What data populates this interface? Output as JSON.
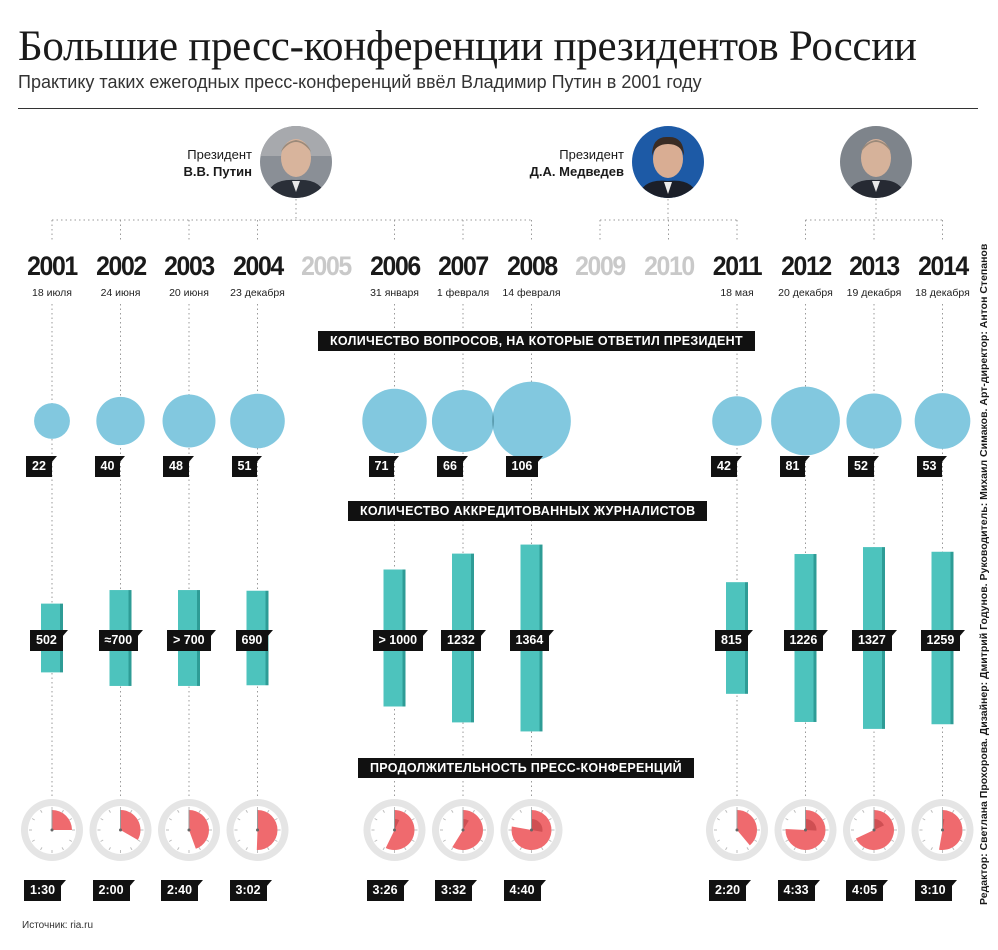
{
  "header": {
    "title": "Большие пресс-конференции президентов России",
    "subtitle": "Практику таких ежегодных пресс-конференций ввёл Владимир Путин в 2001 году"
  },
  "presidents": [
    {
      "role": "Президент",
      "name": "В.В. Путин"
    },
    {
      "role": "Президент",
      "name": "Д.А. Медведев"
    }
  ],
  "sections": {
    "questions": "КОЛИЧЕСТВО ВОПРОСОВ, НА КОТОРЫЕ ОТВЕТИЛ ПРЕЗИДЕНТ",
    "journalists": "КОЛИЧЕСТВО АККРЕДИТОВАННЫХ ЖУРНАЛИСТОВ",
    "duration": "ПРОДОЛЖИТЕЛЬНОСТЬ ПРЕСС-КОНФЕРЕНЦИЙ"
  },
  "footer": {
    "source": "Источник: ria.ru",
    "credits": "Редактор: Светлана Прохорова. Дизайнер: Дмитрий Годунов. Руководитель: Михаил Симаков. Арт-директор: Антон Степанов"
  },
  "colors": {
    "bubble": "#82c8df",
    "bubble_overlap": "#5b9db0",
    "bar": "#4dc3bd",
    "bar_dark": "#2e9c96",
    "clock_face": "#e5e5e5",
    "clock_fill": "#ef6a6e",
    "clock_fill_dark": "#cf4f53",
    "absent_year": "#c9c9c9"
  },
  "chart_data": {
    "type": "table",
    "years": [
      {
        "year": "2001",
        "date": "18 июля",
        "questions": 22,
        "questions_label": "22",
        "journalists": 502,
        "journalists_label": "502",
        "duration_min": 90,
        "duration_label": "1:30",
        "president": "Путин"
      },
      {
        "year": "2002",
        "date": "24 июня",
        "questions": 40,
        "questions_label": "40",
        "journalists": 700,
        "journalists_label": "≈700",
        "duration_min": 120,
        "duration_label": "2:00",
        "president": "Путин"
      },
      {
        "year": "2003",
        "date": "20 июня",
        "questions": 48,
        "questions_label": "48",
        "journalists": 700,
        "journalists_label": "> 700",
        "duration_min": 160,
        "duration_label": "2:40",
        "president": "Путин"
      },
      {
        "year": "2004",
        "date": "23 декабря",
        "questions": 51,
        "questions_label": "51",
        "journalists": 690,
        "journalists_label": "690",
        "duration_min": 182,
        "duration_label": "3:02",
        "president": "Путин"
      },
      {
        "year": "2005",
        "absent": true
      },
      {
        "year": "2006",
        "date": "31 января",
        "questions": 71,
        "questions_label": "71",
        "journalists": 1000,
        "journalists_label": "> 1000",
        "duration_min": 206,
        "duration_label": "3:26",
        "president": "Путин"
      },
      {
        "year": "2007",
        "date": "1 февраля",
        "questions": 66,
        "questions_label": "66",
        "journalists": 1232,
        "journalists_label": "1232",
        "duration_min": 212,
        "duration_label": "3:32",
        "president": "Путин"
      },
      {
        "year": "2008",
        "date": "14 февраля",
        "questions": 106,
        "questions_label": "106",
        "journalists": 1364,
        "journalists_label": "1364",
        "duration_min": 280,
        "duration_label": "4:40",
        "president": "Путин"
      },
      {
        "year": "2009",
        "absent": true
      },
      {
        "year": "2010",
        "absent": true
      },
      {
        "year": "2011",
        "date": "18 мая",
        "questions": 42,
        "questions_label": "42",
        "journalists": 815,
        "journalists_label": "815",
        "duration_min": 140,
        "duration_label": "2:20",
        "president": "Медведев"
      },
      {
        "year": "2012",
        "date": "20 декабря",
        "questions": 81,
        "questions_label": "81",
        "journalists": 1226,
        "journalists_label": "1226",
        "duration_min": 273,
        "duration_label": "4:33",
        "president": "Путин"
      },
      {
        "year": "2013",
        "date": "19 декабря",
        "questions": 52,
        "questions_label": "52",
        "journalists": 1327,
        "journalists_label": "1327",
        "duration_min": 245,
        "duration_label": "4:05",
        "president": "Путин"
      },
      {
        "year": "2014",
        "date": "18 декабря",
        "questions": 53,
        "questions_label": "53",
        "journalists": 1259,
        "journalists_label": "1259",
        "duration_min": 190,
        "duration_label": "3:10",
        "president": "Путин"
      }
    ]
  }
}
